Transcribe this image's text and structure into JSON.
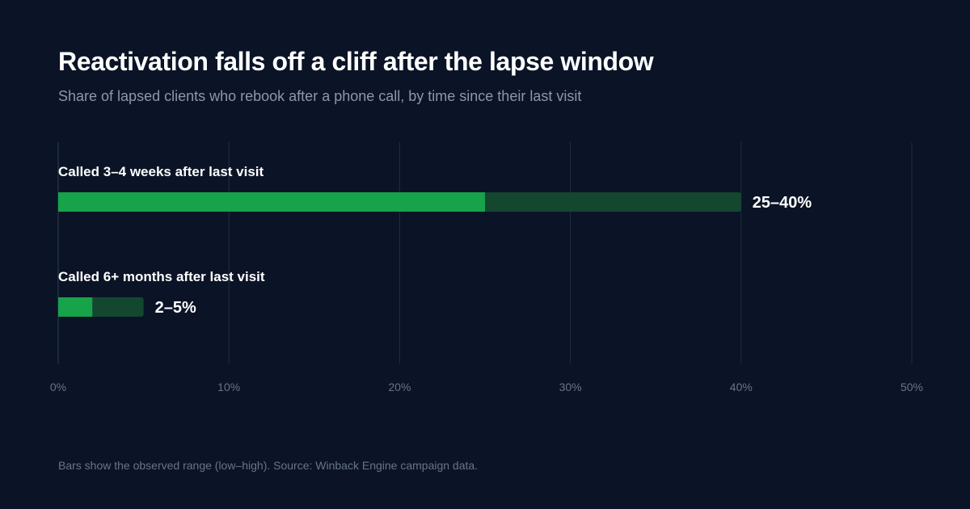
{
  "title": "Reactivation falls off a cliff after the lapse window",
  "subtitle": "Share of lapsed clients who rebook after a phone call, by time since their last visit",
  "footnote": "Bars show the observed range (low–high). Source: Winback Engine campaign data.",
  "colors": {
    "background": "#0b1426",
    "bar_low": "#16a34a",
    "bar_high": "#14472f",
    "grid": "#1f2d45",
    "tick_text": "#67748a"
  },
  "chart_data": {
    "type": "bar",
    "orientation": "horizontal",
    "title": "Reactivation falls off a cliff after the lapse window",
    "subtitle": "Share of lapsed clients who rebook after a phone call, by time since their last visit",
    "categories": [
      "Called 3–4 weeks after last visit",
      "Called 6+ months after last visit"
    ],
    "ranges": [
      {
        "low": 25,
        "high": 40,
        "label": "25–40%"
      },
      {
        "low": 2,
        "high": 5,
        "label": "2–5%"
      }
    ],
    "xlim": [
      0,
      50
    ],
    "xticks": [
      0,
      10,
      20,
      30,
      40,
      50
    ],
    "xtick_labels": [
      "0%",
      "10%",
      "20%",
      "30%",
      "40%",
      "50%"
    ],
    "grid": "vertical",
    "legend": "none"
  }
}
